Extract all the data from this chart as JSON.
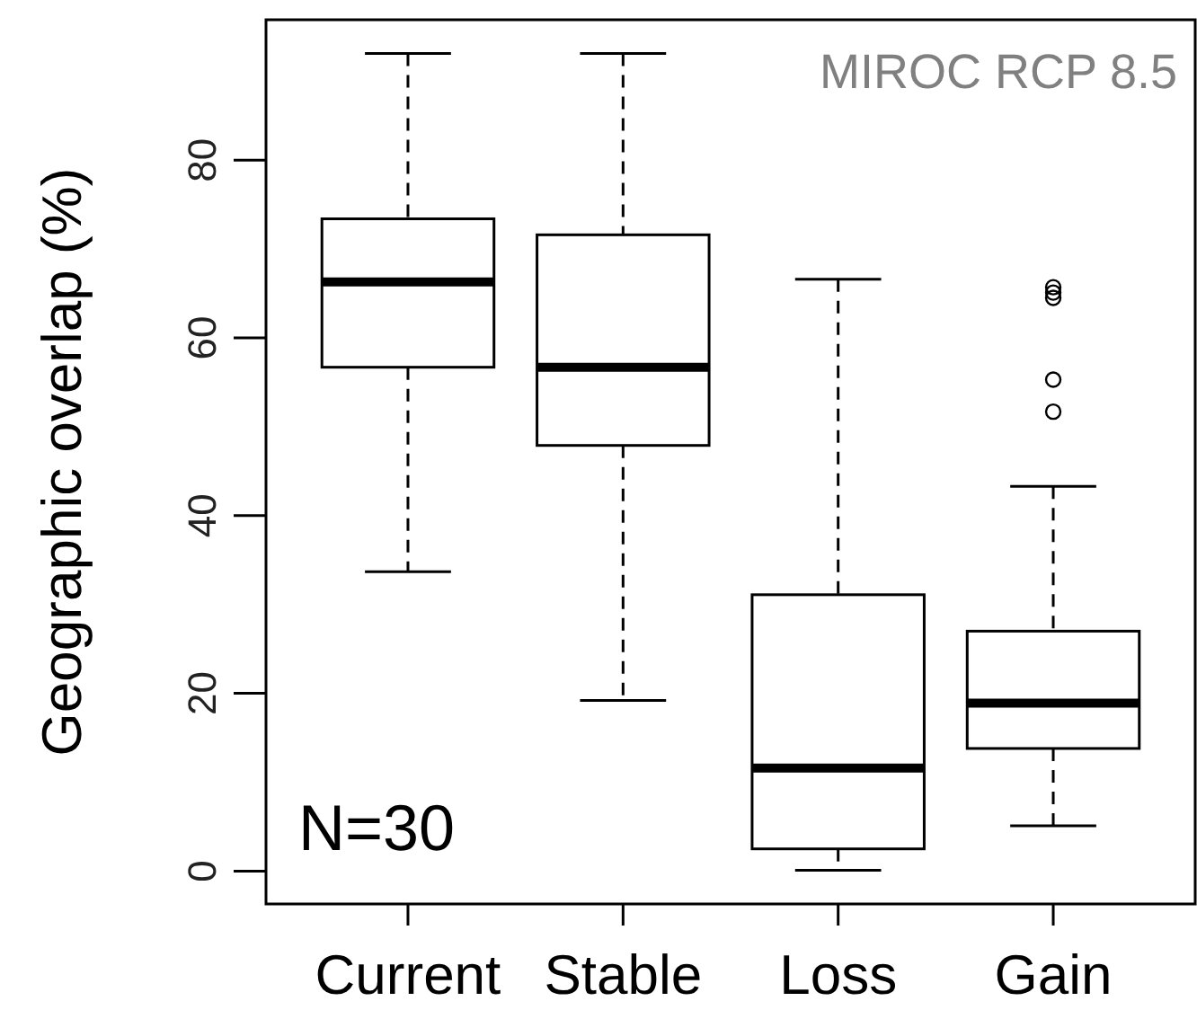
{
  "chart_data": {
    "type": "box",
    "ylabel": "Geographic overlap (%)",
    "categories": [
      "Current",
      "Stable",
      "Loss",
      "Gain"
    ],
    "boxes": [
      {
        "low": 33.7,
        "q1": 56.7,
        "median": 66.3,
        "q3": 73.4,
        "high": 92
      },
      {
        "low": 19.2,
        "q1": 47.9,
        "median": 56.7,
        "q3": 71.6,
        "high": 92
      },
      {
        "low": 0.1,
        "q1": 2.5,
        "median": 11.6,
        "q3": 31.1,
        "high": 66.6
      },
      {
        "low": 5.1,
        "q1": 13.8,
        "median": 18.9,
        "q3": 27,
        "high": 43.3,
        "outliers": [
          64.5,
          65.1,
          65.7,
          55.3,
          51.7
        ]
      }
    ],
    "color": "#000000",
    "ylim": [
      -3.7,
      95.8
    ],
    "yticks": [
      0,
      20,
      40,
      60,
      80
    ],
    "grid": false,
    "annotations": [
      "N=30",
      "MIROC RCP 8.5"
    ]
  }
}
